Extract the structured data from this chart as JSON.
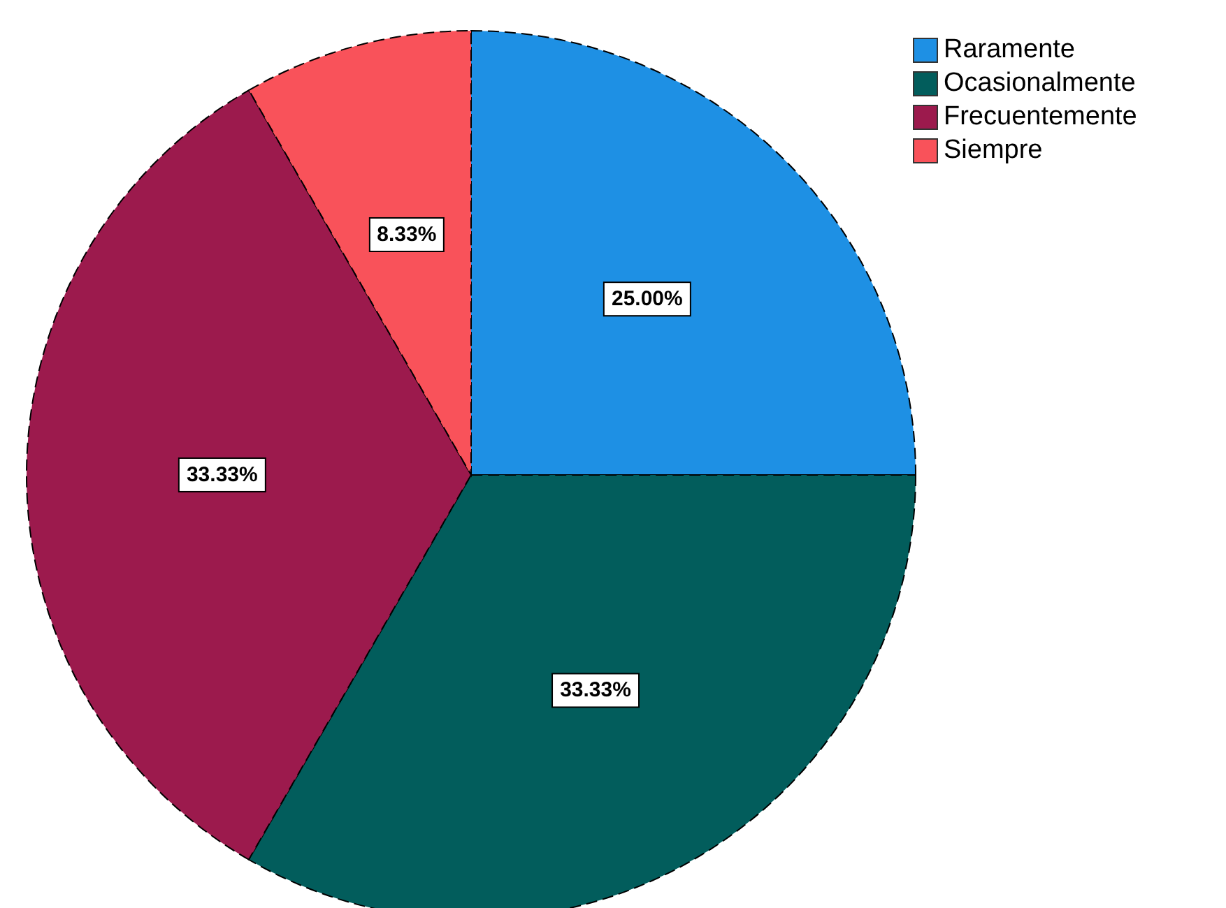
{
  "chart_data": {
    "type": "pie",
    "categories": [
      "Raramente",
      "Ocasionalmente",
      "Frecuentemente",
      "Siempre"
    ],
    "values": [
      25,
      33.33,
      33.33,
      8.33
    ],
    "value_labels": [
      "25.00%",
      "33.33%",
      "33.33%",
      "8.33%"
    ],
    "colors": [
      "#1e90e4",
      "#025d5c",
      "#9c1a4d",
      "#f9525a"
    ],
    "legend": "top right"
  }
}
